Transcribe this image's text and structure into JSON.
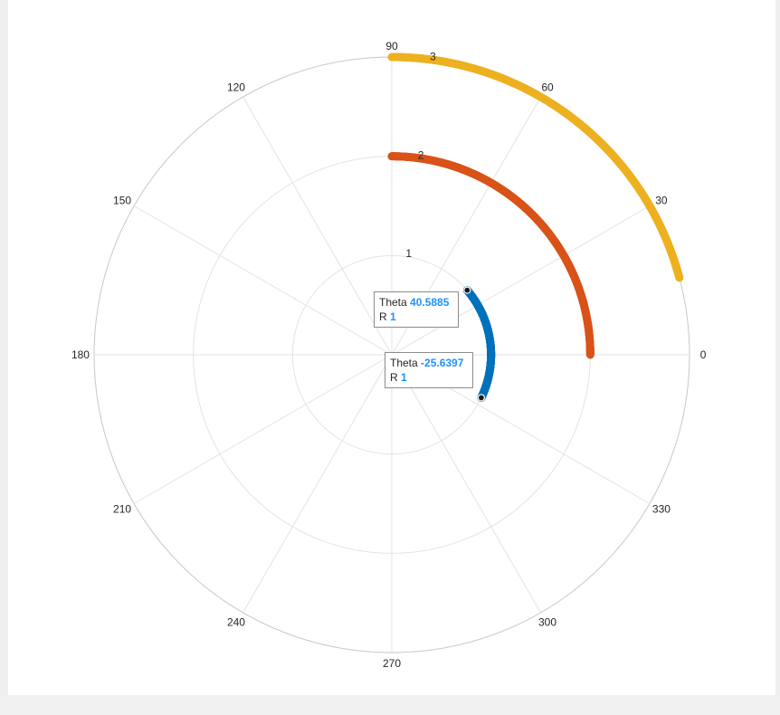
{
  "chart_data": {
    "type": "scatter",
    "coordinate_system": "polar",
    "theta_ticks": [
      "0",
      "30",
      "60",
      "90",
      "120",
      "150",
      "180",
      "210",
      "240",
      "270",
      "300",
      "330"
    ],
    "r_ticks": [
      "1",
      "2",
      "3"
    ],
    "r_lim": [
      0,
      3
    ],
    "grid": true,
    "series": [
      {
        "r": 1,
        "theta_start": -25.6397,
        "theta_end": 40.5885,
        "color": "#0072bd",
        "marker": "circle"
      },
      {
        "r": 2,
        "theta_start": 0,
        "theta_end": 90,
        "color": "#d95319",
        "marker": "circle"
      },
      {
        "r": 3,
        "theta_start": 15,
        "theta_end": 90,
        "color": "#edb120",
        "marker": "circle"
      }
    ],
    "datatips": [
      {
        "theta_label": "Theta",
        "theta_value": "40.5885",
        "r_label": "R",
        "r_value": "1"
      },
      {
        "theta_label": "Theta",
        "theta_value": "-25.6397",
        "r_label": "R",
        "r_value": "1"
      }
    ]
  }
}
